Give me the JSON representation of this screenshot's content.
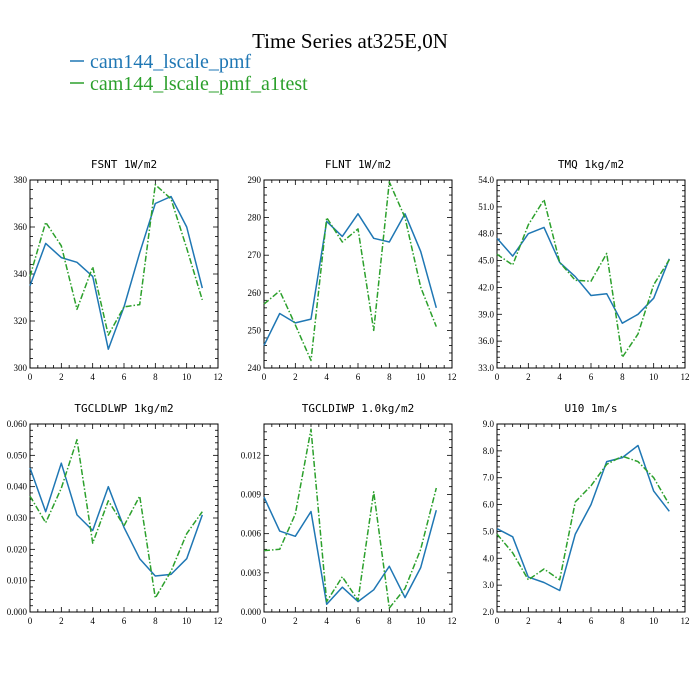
{
  "figure": {
    "title": "Time Series at325E,0N",
    "legend": [
      {
        "label": "cam144_lscale_pmf",
        "color": "#1f77b4",
        "dash": "solid"
      },
      {
        "label": "cam144_lscale_pmf_a1test",
        "color": "#2ca02c",
        "dash": "dashdot"
      }
    ]
  },
  "chart_data": [
    {
      "type": "line",
      "title": "FSNT  1W/m2",
      "xlim": [
        0,
        12
      ],
      "ylim": [
        300,
        380
      ],
      "xticks": [
        0,
        2,
        4,
        6,
        8,
        10,
        12
      ],
      "yticks": [
        300,
        320,
        340,
        360,
        380
      ],
      "ytick_labels": [
        "300",
        "320",
        "340",
        "360",
        "380"
      ],
      "x": [
        0,
        1,
        2,
        3,
        4,
        5,
        6,
        7,
        8,
        9,
        10,
        11
      ],
      "series": [
        {
          "name": "cam144_lscale_pmf",
          "values": [
            335,
            353,
            347,
            345,
            339,
            308,
            326,
            349,
            370,
            373,
            360,
            334
          ]
        },
        {
          "name": "cam144_lscale_pmf_a1test",
          "values": [
            339,
            362,
            352,
            325,
            343,
            314,
            326,
            327,
            378,
            372,
            351,
            329
          ]
        }
      ]
    },
    {
      "type": "line",
      "title": "FLNT  1W/m2",
      "xlim": [
        0,
        12
      ],
      "ylim": [
        240,
        290
      ],
      "xticks": [
        0,
        2,
        4,
        6,
        8,
        10,
        12
      ],
      "yticks": [
        240,
        250,
        260,
        270,
        280,
        290
      ],
      "ytick_labels": [
        "240",
        "250",
        "260",
        "270",
        "280",
        "290"
      ],
      "x": [
        0,
        1,
        2,
        3,
        4,
        5,
        6,
        7,
        8,
        9,
        10,
        11
      ],
      "series": [
        {
          "name": "cam144_lscale_pmf",
          "values": [
            246,
            254.5,
            252,
            253,
            279,
            275,
            281,
            274.5,
            273.5,
            281,
            271,
            256
          ]
        },
        {
          "name": "cam144_lscale_pmf_a1test",
          "values": [
            257,
            260.5,
            251.5,
            242,
            280,
            273.5,
            277,
            250,
            289.5,
            280,
            261.5,
            251
          ]
        }
      ]
    },
    {
      "type": "line",
      "title": "TMQ  1kg/m2",
      "xlim": [
        0,
        12
      ],
      "ylim": [
        33,
        54
      ],
      "xticks": [
        0,
        2,
        4,
        6,
        8,
        10,
        12
      ],
      "yticks": [
        33,
        36,
        39,
        42,
        45,
        48,
        51,
        54
      ],
      "ytick_labels": [
        "33.0",
        "36.0",
        "39.0",
        "42.0",
        "45.0",
        "48.0",
        "51.0",
        "54.0"
      ],
      "x": [
        0,
        1,
        2,
        3,
        4,
        5,
        6,
        7,
        8,
        9,
        10,
        11
      ],
      "series": [
        {
          "name": "cam144_lscale_pmf",
          "values": [
            47.5,
            45.5,
            48,
            48.7,
            44.8,
            43.2,
            41.1,
            41.3,
            38,
            39,
            40.8,
            45.2
          ]
        },
        {
          "name": "cam144_lscale_pmf_a1test",
          "values": [
            45.7,
            44.5,
            49,
            51.8,
            44.8,
            42.8,
            42.7,
            45.8,
            34.2,
            36.8,
            42.3,
            45.1
          ]
        }
      ]
    },
    {
      "type": "line",
      "title": "TGCLDLWP  1kg/m2",
      "xlim": [
        0,
        12
      ],
      "ylim": [
        0,
        0.06
      ],
      "xticks": [
        0,
        2,
        4,
        6,
        8,
        10,
        12
      ],
      "yticks": [
        0,
        0.01,
        0.02,
        0.03,
        0.04,
        0.05,
        0.06
      ],
      "ytick_labels": [
        "0.000",
        "0.010",
        "0.020",
        "0.030",
        "0.040",
        "0.050",
        "0.060"
      ],
      "x": [
        0,
        1,
        2,
        3,
        4,
        5,
        6,
        7,
        8,
        9,
        10,
        11
      ],
      "series": [
        {
          "name": "cam144_lscale_pmf",
          "values": [
            0.046,
            0.032,
            0.0475,
            0.031,
            0.026,
            0.04,
            0.027,
            0.017,
            0.0115,
            0.012,
            0.017,
            0.031
          ]
        },
        {
          "name": "cam144_lscale_pmf_a1test",
          "values": [
            0.037,
            0.0285,
            0.0395,
            0.055,
            0.022,
            0.0355,
            0.0275,
            0.037,
            0.0045,
            0.013,
            0.025,
            0.032
          ]
        }
      ]
    },
    {
      "type": "line",
      "title": "TGCLDIWP  1.0kg/m2",
      "xlim": [
        0,
        12
      ],
      "ylim": [
        0,
        0.0144
      ],
      "xticks": [
        0,
        2,
        4,
        6,
        8,
        10,
        12
      ],
      "yticks": [
        0,
        0.003,
        0.006,
        0.009,
        0.012
      ],
      "ytick_labels": [
        "0.000",
        "0.003",
        "0.006",
        "0.009",
        "0.012"
      ],
      "x": [
        0,
        1,
        2,
        3,
        4,
        5,
        6,
        7,
        8,
        9,
        10,
        11
      ],
      "series": [
        {
          "name": "cam144_lscale_pmf",
          "values": [
            0.0088,
            0.0062,
            0.0058,
            0.0077,
            0.0006,
            0.0019,
            0.0008,
            0.0017,
            0.0035,
            0.0011,
            0.0034,
            0.0078
          ]
        },
        {
          "name": "cam144_lscale_pmf_a1test",
          "values": [
            0.0047,
            0.0048,
            0.0075,
            0.014,
            0.0008,
            0.0027,
            0.0009,
            0.0092,
            0.0003,
            0.0018,
            0.0048,
            0.0095
          ]
        }
      ]
    },
    {
      "type": "line",
      "title": "U10  1m/s",
      "xlim": [
        0,
        12
      ],
      "ylim": [
        2,
        9
      ],
      "xticks": [
        0,
        2,
        4,
        6,
        8,
        10,
        12
      ],
      "yticks": [
        2,
        3,
        4,
        5,
        6,
        7,
        8,
        9
      ],
      "ytick_labels": [
        "2.0",
        "3.0",
        "4.0",
        "5.0",
        "6.0",
        "7.0",
        "8.0",
        "9.0"
      ],
      "x": [
        0,
        1,
        2,
        3,
        4,
        5,
        6,
        7,
        8,
        9,
        10,
        11
      ],
      "series": [
        {
          "name": "cam144_lscale_pmf",
          "values": [
            5.1,
            4.8,
            3.3,
            3.1,
            2.8,
            4.9,
            6.0,
            7.6,
            7.75,
            8.2,
            6.5,
            5.75
          ]
        },
        {
          "name": "cam144_lscale_pmf_a1test",
          "values": [
            4.9,
            4.2,
            3.2,
            3.6,
            3.2,
            6.1,
            6.7,
            7.5,
            7.8,
            7.6,
            7.0,
            6.0
          ]
        }
      ]
    }
  ]
}
